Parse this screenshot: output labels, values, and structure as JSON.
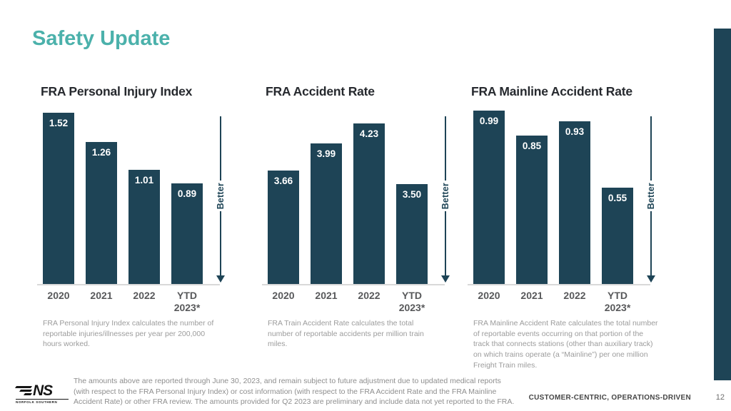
{
  "slide": {
    "title": "Safety Update",
    "page_number": "12",
    "footer_tagline": "CUSTOMER-CENTRIC, OPERATIONS-DRIVEN",
    "disclaimer": "The amounts above are reported through June 30, 2023, and remain subject to future adjustment due to updated medical reports\n(with respect to the FRA Personal Injury Index) or cost information (with respect to the FRA Accident Rate and the FRA Mainline\nAccident Rate) or other FRA review. The amounts provided for Q2 2023 are preliminary and include data not yet reported to the FRA.",
    "logo": {
      "text": "NS",
      "subtext": "NORFOLK SOUTHERN"
    }
  },
  "colors": {
    "accent_teal": "#4BB1AB",
    "bar_navy": "#1E4456",
    "title_dark": "#26292E",
    "xlabel_gray": "#58595B",
    "footnote_gray": "#9C9C9C",
    "disclaimer_gray": "#8E8E8E",
    "tagline_gray": "#454545",
    "baseline_gray": "#D9D9D9"
  },
  "chart_data": [
    {
      "type": "bar",
      "title": "FRA Personal Injury Index",
      "categories": [
        "2020",
        "2021",
        "2022",
        "YTD\n2023*"
      ],
      "values": [
        1.52,
        1.26,
        1.01,
        0.89
      ],
      "ylim": [
        0,
        1.55
      ],
      "grid": false,
      "better_label": "Better",
      "footnote": "FRA Personal Injury Index calculates the number of reportable injuries/illnesses per year per 200,000 hours worked."
    },
    {
      "type": "bar",
      "title": "FRA Accident Rate",
      "categories": [
        "2020",
        "2021",
        "2022",
        "YTD\n2023*"
      ],
      "values": [
        3.66,
        3.99,
        4.23,
        3.5
      ],
      "ylim": [
        2.3,
        4.4
      ],
      "grid": false,
      "better_label": "Better",
      "footnote": "FRA Train Accident Rate calculates the total number of reportable accidents per million train miles."
    },
    {
      "type": "bar",
      "title": "FRA Mainline Accident Rate",
      "categories": [
        "2020",
        "2021",
        "2022",
        "YTD\n2023*"
      ],
      "values": [
        0.99,
        0.85,
        0.93,
        0.55
      ],
      "ylim": [
        0,
        1.0
      ],
      "grid": false,
      "better_label": "Better",
      "footnote": "FRA Mainline Accident Rate calculates the total number of reportable events occurring on that portion of the track that connects stations (other than auxiliary track) on which trains operate (a “Mainline”) per one million Freight Train miles."
    }
  ]
}
